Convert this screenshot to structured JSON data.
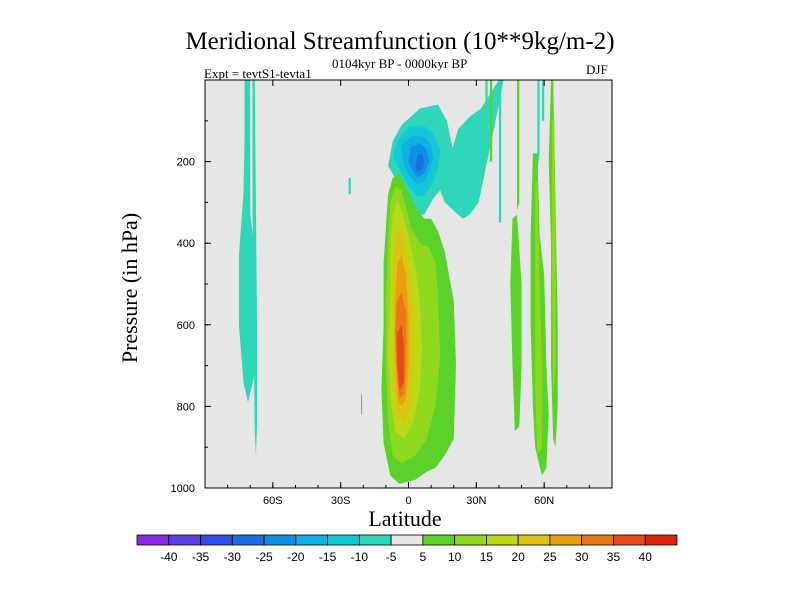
{
  "chart_data": {
    "type": "heatmap",
    "title": "Meridional Streamfunction (10**9kg/m-2)",
    "subtitle": "0104kyr BP - 0000kyr BP",
    "left_label": "Expt = tevtS1-tevta1",
    "right_label": "DJF",
    "xlabel": "Latitude",
    "ylabel": "Pressure (in hPa)",
    "xlim": [
      -90,
      90
    ],
    "ylim": [
      1000,
      0
    ],
    "x_ticks": [
      {
        "value": -60,
        "label": "60S"
      },
      {
        "value": -30,
        "label": "30S"
      },
      {
        "value": 0,
        "label": "0"
      },
      {
        "value": 30,
        "label": "30N"
      },
      {
        "value": 60,
        "label": "60N"
      }
    ],
    "y_ticks": [
      {
        "value": 200,
        "label": "200"
      },
      {
        "value": 400,
        "label": "400"
      },
      {
        "value": 600,
        "label": "600"
      },
      {
        "value": 800,
        "label": "800"
      },
      {
        "value": 1000,
        "label": "1000"
      }
    ],
    "background_color": "#e6e6e6",
    "colorbar": {
      "levels": [
        "-40",
        "-35",
        "-30",
        "-25",
        "-20",
        "-15",
        "-10",
        "-5",
        "5",
        "10",
        "15",
        "20",
        "25",
        "30",
        "35",
        "40"
      ],
      "colors": [
        "#8a2be2",
        "#5a3fe0",
        "#2f4fe8",
        "#1d6fe0",
        "#0f8ee8",
        "#10b0e0",
        "#14c8d8",
        "#2fd6b8",
        "#e6e6e6",
        "#5ad22a",
        "#8ed81e",
        "#bcd818",
        "#dcc414",
        "#e8a010",
        "#e8781a",
        "#e44a1a",
        "#d82410"
      ]
    },
    "regions": [
      {
        "name": "southern-high-lat-cell",
        "level": -5,
        "points": [
          [
            -72.5,
            0
          ],
          [
            -70,
            0
          ],
          [
            -70,
            330
          ],
          [
            -68,
            420
          ],
          [
            -68,
            720
          ],
          [
            -71,
            790
          ],
          [
            -73,
            740
          ],
          [
            -75,
            600
          ],
          [
            -75,
            430
          ],
          [
            -73,
            280
          ],
          [
            -72.5,
            140
          ]
        ]
      },
      {
        "name": "southern-thin-band",
        "level": -5,
        "points": [
          [
            -70,
            330
          ],
          [
            -68,
            420
          ],
          [
            -68,
            720
          ],
          [
            -69,
            640
          ],
          [
            -70,
            500
          ]
        ]
      },
      {
        "name": "south-polar-streak",
        "level": -5,
        "points": [
          [
            -69,
            0
          ],
          [
            -68,
            0
          ],
          [
            -67.5,
            300
          ],
          [
            -67,
            600
          ],
          [
            -67,
            850
          ],
          [
            -67.5,
            920
          ],
          [
            -68,
            860
          ],
          [
            -68.5,
            600
          ],
          [
            -69,
            300
          ]
        ]
      },
      {
        "name": "patch-30s",
        "level": -5,
        "points": [
          [
            -26.5,
            240
          ],
          [
            -25.5,
            240
          ],
          [
            -25.5,
            280
          ],
          [
            -26.5,
            280
          ]
        ]
      },
      {
        "name": "patch-20s",
        "level": 5,
        "points": [
          [
            -21,
            770
          ],
          [
            -20.5,
            770
          ],
          [
            -20.5,
            820
          ],
          [
            -21,
            820
          ]
        ]
      },
      {
        "name": "tropical-neg-outer",
        "level": -5,
        "points": [
          [
            -7,
            150
          ],
          [
            -3,
            110
          ],
          [
            5,
            70
          ],
          [
            13,
            60
          ],
          [
            17,
            100
          ],
          [
            20,
            180
          ],
          [
            18,
            230
          ],
          [
            14,
            270
          ],
          [
            11,
            290
          ],
          [
            7,
            330
          ],
          [
            4,
            330
          ],
          [
            0,
            300
          ],
          [
            -4,
            260
          ],
          [
            -9,
            210
          ]
        ]
      },
      {
        "name": "tropical-neg-10",
        "level": -10,
        "points": [
          [
            -5,
            150
          ],
          [
            0,
            115
          ],
          [
            6,
            110
          ],
          [
            11,
            130
          ],
          [
            14,
            170
          ],
          [
            13,
            220
          ],
          [
            10,
            260
          ],
          [
            7,
            285
          ],
          [
            4,
            285
          ],
          [
            0,
            260
          ],
          [
            -4,
            220
          ],
          [
            -7,
            185
          ]
        ]
      },
      {
        "name": "tropical-neg-15",
        "level": -15,
        "points": [
          [
            -3,
            160
          ],
          [
            2,
            135
          ],
          [
            7,
            140
          ],
          [
            10,
            160
          ],
          [
            11,
            190
          ],
          [
            9,
            225
          ],
          [
            7,
            250
          ],
          [
            4,
            255
          ],
          [
            1,
            240
          ],
          [
            -2,
            210
          ]
        ]
      },
      {
        "name": "tropical-neg-20",
        "level": -20,
        "points": [
          [
            1,
            165
          ],
          [
            5,
            155
          ],
          [
            8,
            170
          ],
          [
            9,
            200
          ],
          [
            7,
            230
          ],
          [
            4,
            240
          ],
          [
            2,
            225
          ],
          [
            0,
            200
          ]
        ]
      },
      {
        "name": "tropical-neg-25",
        "level": -25,
        "points": [
          [
            4,
            185
          ],
          [
            6,
            180
          ],
          [
            7,
            200
          ],
          [
            6,
            220
          ],
          [
            4,
            225
          ],
          [
            3,
            210
          ]
        ]
      },
      {
        "name": "northern-neg-band",
        "level": -5,
        "points": [
          [
            14,
            270
          ],
          [
            22,
            120
          ],
          [
            27,
            90
          ],
          [
            32,
            70
          ],
          [
            40,
            0
          ],
          [
            42,
            0
          ],
          [
            40,
            60
          ],
          [
            37,
            140
          ],
          [
            34,
            220
          ],
          [
            31,
            300
          ],
          [
            27,
            330
          ],
          [
            24,
            340
          ],
          [
            20,
            320
          ],
          [
            16,
            300
          ]
        ]
      },
      {
        "name": "northern-neg-strip-a",
        "level": -5,
        "points": [
          [
            34,
            0
          ],
          [
            35,
            0
          ],
          [
            35,
            120
          ],
          [
            34,
            120
          ]
        ]
      },
      {
        "name": "northern-neg-strip-b",
        "level": -5,
        "points": [
          [
            40,
            0
          ],
          [
            41,
            0
          ],
          [
            41,
            350
          ],
          [
            40,
            350
          ]
        ]
      },
      {
        "name": "northern-neg-strip-c",
        "level": -5,
        "points": [
          [
            57,
            0
          ],
          [
            58,
            0
          ],
          [
            58,
            180
          ],
          [
            57,
            220
          ]
        ]
      },
      {
        "name": "northern-neg-strip-d",
        "level": -5,
        "points": [
          [
            59,
            0
          ],
          [
            60,
            0
          ],
          [
            60,
            100
          ],
          [
            59,
            100
          ]
        ]
      },
      {
        "name": "northern-neg-strip-e",
        "level": -5,
        "points": [
          [
            63,
            0
          ],
          [
            64,
            0
          ],
          [
            64,
            110
          ],
          [
            63,
            110
          ]
        ]
      },
      {
        "name": "tropical-pos-5",
        "level": 5,
        "points": [
          [
            -9,
            280
          ],
          [
            -7,
            240
          ],
          [
            -4,
            230
          ],
          [
            -2,
            250
          ],
          [
            3,
            310
          ],
          [
            7,
            340
          ],
          [
            10,
            340
          ],
          [
            13,
            370
          ],
          [
            16,
            420
          ],
          [
            20,
            540
          ],
          [
            21,
            700
          ],
          [
            20,
            880
          ],
          [
            16,
            920
          ],
          [
            12,
            950
          ],
          [
            8,
            960
          ],
          [
            3,
            980
          ],
          [
            -4,
            990
          ],
          [
            -8,
            970
          ],
          [
            -11,
            890
          ],
          [
            -12,
            760
          ],
          [
            -11,
            600
          ],
          [
            -11,
            450
          ],
          [
            -10,
            360
          ]
        ]
      },
      {
        "name": "tropical-pos-10",
        "level": 10,
        "points": [
          [
            -8,
            300
          ],
          [
            -6,
            260
          ],
          [
            -3,
            270
          ],
          [
            1,
            360
          ],
          [
            5,
            400
          ],
          [
            9,
            410
          ],
          [
            12,
            450
          ],
          [
            13,
            520
          ],
          [
            14,
            680
          ],
          [
            12,
            800
          ],
          [
            8,
            880
          ],
          [
            3,
            920
          ],
          [
            -3,
            940
          ],
          [
            -7,
            920
          ],
          [
            -9,
            840
          ],
          [
            -10,
            700
          ],
          [
            -10,
            540
          ],
          [
            -9,
            400
          ]
        ]
      },
      {
        "name": "tropical-pos-15",
        "level": 15,
        "points": [
          [
            -7,
            330
          ],
          [
            -5,
            300
          ],
          [
            -3,
            320
          ],
          [
            0,
            380
          ],
          [
            3,
            460
          ],
          [
            5,
            540
          ],
          [
            6,
            660
          ],
          [
            5,
            760
          ],
          [
            2,
            840
          ],
          [
            -2,
            880
          ],
          [
            -6,
            860
          ],
          [
            -8,
            780
          ],
          [
            -9,
            660
          ],
          [
            -8,
            520
          ],
          [
            -8,
            420
          ]
        ]
      },
      {
        "name": "tropical-pos-20",
        "level": 20,
        "points": [
          [
            -6,
            380
          ],
          [
            -4,
            360
          ],
          [
            -2,
            390
          ],
          [
            0,
            460
          ],
          [
            2,
            560
          ],
          [
            2,
            700
          ],
          [
            1,
            800
          ],
          [
            -2,
            840
          ],
          [
            -5,
            820
          ],
          [
            -7,
            740
          ],
          [
            -7,
            620
          ],
          [
            -7,
            500
          ]
        ]
      },
      {
        "name": "tropical-pos-25",
        "level": 25,
        "points": [
          [
            -5,
            450
          ],
          [
            -3,
            430
          ],
          [
            -1,
            480
          ],
          [
            0,
            580
          ],
          [
            0,
            700
          ],
          [
            -1,
            780
          ],
          [
            -3,
            800
          ],
          [
            -5,
            780
          ],
          [
            -6,
            680
          ],
          [
            -6,
            560
          ]
        ]
      },
      {
        "name": "tropical-pos-30",
        "level": 30,
        "points": [
          [
            -5,
            540
          ],
          [
            -3,
            520
          ],
          [
            -1,
            570
          ],
          [
            -1,
            700
          ],
          [
            -2,
            770
          ],
          [
            -4,
            780
          ],
          [
            -5,
            720
          ],
          [
            -6,
            620
          ]
        ]
      },
      {
        "name": "tropical-pos-35",
        "level": 35,
        "points": [
          [
            -5,
            620
          ],
          [
            -3,
            600
          ],
          [
            -2,
            660
          ],
          [
            -2,
            740
          ],
          [
            -4,
            760
          ],
          [
            -5,
            700
          ]
        ]
      },
      {
        "name": "northern-pos-band-a",
        "level": 5,
        "points": [
          [
            36,
            0
          ],
          [
            37,
            0
          ],
          [
            37,
            200
          ],
          [
            36,
            200
          ]
        ]
      },
      {
        "name": "northern-pos-band-b",
        "level": 5,
        "points": [
          [
            48,
            0
          ],
          [
            49,
            0
          ],
          [
            49,
            300
          ],
          [
            48,
            320
          ]
        ]
      },
      {
        "name": "northern-pos-outer",
        "level": 5,
        "points": [
          [
            55,
            180
          ],
          [
            57,
            180
          ],
          [
            58,
            380
          ],
          [
            60,
            480
          ],
          [
            61,
            700
          ],
          [
            62,
            820
          ],
          [
            61,
            950
          ],
          [
            59,
            970
          ],
          [
            56,
            900
          ],
          [
            55,
            800
          ],
          [
            54,
            600
          ],
          [
            54,
            380
          ]
        ]
      },
      {
        "name": "northern-pos-outer-10",
        "level": 10,
        "points": [
          [
            56,
            250
          ],
          [
            57,
            250
          ],
          [
            58,
            500
          ],
          [
            59,
            700
          ],
          [
            59,
            900
          ],
          [
            57,
            920
          ],
          [
            56,
            750
          ],
          [
            56,
            500
          ]
        ]
      },
      {
        "name": "northern-pos-far",
        "level": 5,
        "points": [
          [
            63,
            0
          ],
          [
            64,
            0
          ],
          [
            65,
            300
          ],
          [
            66,
            600
          ],
          [
            66,
            800
          ],
          [
            65,
            900
          ],
          [
            64,
            880
          ],
          [
            63,
            700
          ],
          [
            63,
            400
          ],
          [
            62,
            200
          ]
        ]
      },
      {
        "name": "northern-pos-far-10",
        "level": 10,
        "points": [
          [
            63.5,
            100
          ],
          [
            64.5,
            100
          ],
          [
            65,
            400
          ],
          [
            65,
            700
          ],
          [
            64,
            780
          ],
          [
            63.5,
            500
          ]
        ]
      },
      {
        "name": "northern-pos-mid",
        "level": 5,
        "points": [
          [
            46,
            340
          ],
          [
            48,
            330
          ],
          [
            50,
            500
          ],
          [
            50,
            700
          ],
          [
            49,
            850
          ],
          [
            47,
            860
          ],
          [
            46,
            700
          ],
          [
            45,
            500
          ]
        ]
      }
    ]
  }
}
